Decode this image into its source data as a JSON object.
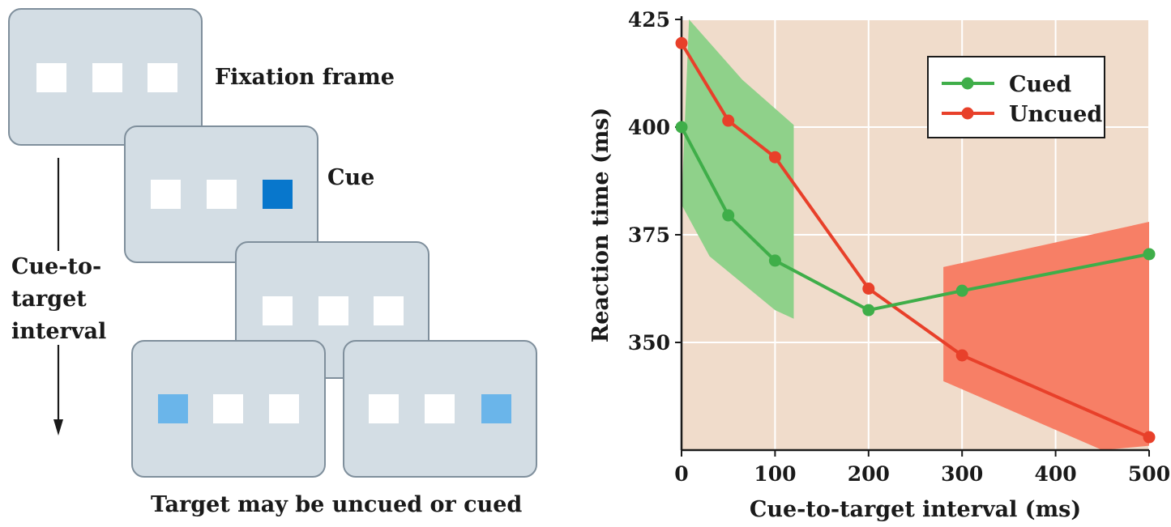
{
  "diagram": {
    "fixation_label": "Fixation frame",
    "cue_label": "Cue",
    "interval_label_lines": [
      "Cue-to-",
      "target",
      "interval"
    ],
    "bottom_caption": "Target may be uncued or cued",
    "colors": {
      "frame_fill": "#d3dde4",
      "frame_border": "#7f8f9c",
      "box": "#ffffff",
      "cue_dark_blue": "#0877cc",
      "target_light_blue": "#6ab5ea"
    }
  },
  "chart_data": {
    "type": "line",
    "title": "",
    "xlabel": "Cue-to-target interval (ms)",
    "ylabel": "Reaction time (ms)",
    "xlim": [
      0,
      500
    ],
    "ylim": [
      325,
      425
    ],
    "xticks": [
      0,
      100,
      200,
      300,
      400,
      500
    ],
    "yticks": [
      350,
      375,
      400,
      425
    ],
    "grid": true,
    "legend_position": "top-right",
    "background_color": "#f0dccb",
    "series": [
      {
        "name": "Cued",
        "color": "#3fae49",
        "band_color": "#8fd18a",
        "x": [
          0,
          50,
          100,
          200,
          300,
          500
        ],
        "y": [
          400,
          379.5,
          369,
          357.5,
          362,
          370.5
        ]
      },
      {
        "name": "Uncued",
        "color": "#e8402a",
        "band_color": "#f77f66",
        "x": [
          0,
          50,
          100,
          200,
          300,
          500
        ],
        "y": [
          419.5,
          401.5,
          393,
          362.5,
          347,
          328
        ]
      }
    ]
  }
}
